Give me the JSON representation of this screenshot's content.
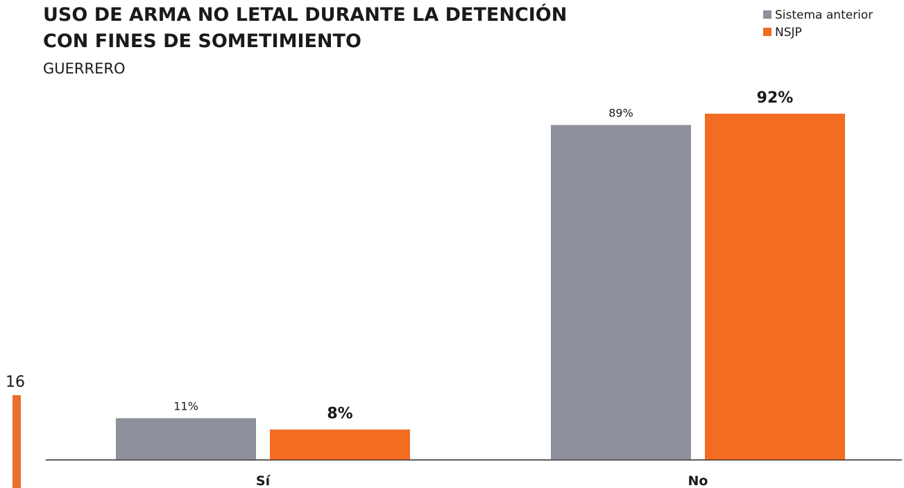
{
  "chart_data": {
    "type": "bar",
    "title": [
      "USO DE ARMA NO LETAL DURANTE LA DETENCIÓN",
      "CON FINES DE SOMETIMIENTO"
    ],
    "subtitle": "GUERRERO",
    "categories": [
      "Sí",
      "No"
    ],
    "series": [
      {
        "name": "Sistema anterior",
        "color": "#8e919c",
        "values": [
          11,
          89
        ],
        "value_labels": [
          "11%",
          "89%"
        ]
      },
      {
        "name": "NSJP",
        "color": "#f26c22",
        "values": [
          8,
          92
        ],
        "value_labels": [
          "8%",
          "92%"
        ]
      }
    ],
    "legend": "top-right"
  },
  "page_number": "16"
}
